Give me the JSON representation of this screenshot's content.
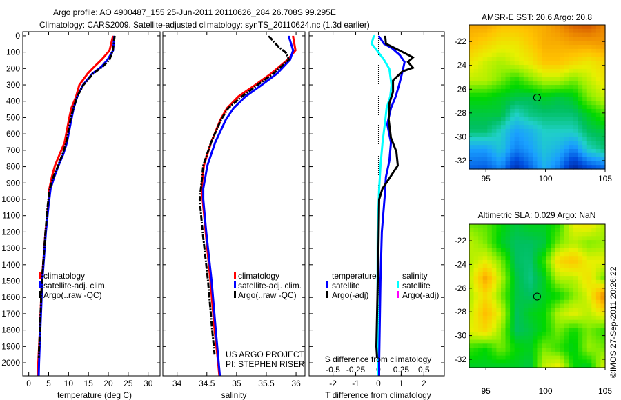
{
  "title": {
    "line1": "Argo profile: AO 4900487_155 25-Jun-2011 20110626_284 26.708S 99.295E",
    "line2": "Climatology: CARS2009. Satellite-adjusted climatology: synTS_20110624.nc (1.3d earlier)"
  },
  "credits": {
    "line1": "US ARGO PROJECT",
    "line2": "PI: STEPHEN RISER"
  },
  "stamp": "©IMOS 27-Sep-2011 20:26:22",
  "colors": {
    "climatology": "#ff0000",
    "satellite": "#0000ff",
    "argo": "#000000",
    "sal_satellite": "#00ffff",
    "sal_argo": "#ff00ff"
  },
  "chart_data": [
    {
      "type": "line",
      "name": "temperature-profile",
      "xlabel": "temperature (deg C)",
      "ylabel": "",
      "xlim": [
        -1.5,
        33
      ],
      "ylim": [
        2080,
        -25
      ],
      "xticks": [
        0,
        5,
        10,
        15,
        20,
        25,
        30
      ],
      "yticks": [
        0,
        100,
        200,
        300,
        400,
        500,
        600,
        700,
        800,
        900,
        1000,
        1100,
        1200,
        1300,
        1400,
        1500,
        1600,
        1700,
        1800,
        1900,
        2000
      ],
      "legend": [
        "climatology",
        "satellite-adj. clim.",
        "Argo(..raw -QC)"
      ],
      "series": [
        {
          "name": "climatology",
          "color": "#ff0000",
          "depth": [
            0,
            70,
            90,
            146,
            188,
            231,
            301,
            371,
            442,
            512,
            653,
            723,
            793,
            864,
            934,
            1032,
            1200,
            1500,
            1800,
            2000,
            2080
          ],
          "values": [
            21.2,
            20.5,
            20.3,
            18.3,
            16.5,
            14.8,
            12.7,
            11.9,
            10.7,
            10.1,
            9.0,
            7.8,
            6.6,
            5.8,
            5.2,
            4.9,
            4.2,
            3.3,
            2.8,
            2.4,
            2.3
          ]
        },
        {
          "name": "satellite-adj. clim.",
          "color": "#0000ff",
          "depth": [
            0,
            90,
            146,
            188,
            231,
            301,
            371,
            442,
            512,
            653,
            723,
            793,
            864,
            934,
            1032,
            1200,
            1500,
            1800,
            2000,
            2080
          ],
          "values": [
            21.5,
            21.2,
            19.8,
            18.3,
            16.0,
            13.6,
            12.2,
            11.3,
            10.7,
            9.6,
            8.7,
            7.5,
            6.4,
            5.5,
            5.0,
            4.3,
            3.4,
            2.9,
            2.6,
            2.5
          ]
        },
        {
          "name": "Argo(..raw -QC)",
          "color": "#000000",
          "depth": [
            0,
            90,
            146,
            188,
            231,
            301,
            371,
            442,
            512,
            653,
            723,
            793,
            864,
            934,
            1032,
            1200,
            1500,
            1800,
            1970
          ],
          "values": [
            21.6,
            21.1,
            20.3,
            18.6,
            16.2,
            13.7,
            12.2,
            11.2,
            10.5,
            9.4,
            8.5,
            7.4,
            6.2,
            5.3,
            4.8,
            4.2,
            3.3,
            2.8,
            2.5
          ]
        }
      ]
    },
    {
      "type": "line",
      "name": "salinity-profile",
      "xlabel": "salinity",
      "xlim": [
        33.76,
        36.15
      ],
      "ylim": [
        2080,
        -25
      ],
      "xticks": [
        34,
        34.5,
        35,
        35.5,
        36
      ],
      "xticklabels": [
        "34",
        "34.5",
        "35",
        "35.5",
        "36"
      ],
      "legend": [
        "climatology",
        "satellite-adj. clim.",
        "Argo(..raw -QC)"
      ],
      "series": [
        {
          "name": "climatology",
          "color": "#ff0000",
          "depth": [
            0,
            5,
            89,
            146,
            231,
            301,
            371,
            442,
            512,
            653,
            793,
            864,
            900,
            1000,
            1200,
            1500,
            1800,
            2000,
            2080
          ],
          "values": [
            35.95,
            35.95,
            35.99,
            35.86,
            35.58,
            35.31,
            35.03,
            34.84,
            34.73,
            34.57,
            34.45,
            34.43,
            34.42,
            34.43,
            34.48,
            34.56,
            34.63,
            34.69,
            34.71
          ]
        },
        {
          "name": "satellite-adj. clim.",
          "color": "#0000ff",
          "depth": [
            0,
            5,
            89,
            146,
            231,
            301,
            371,
            442,
            512,
            653,
            793,
            934,
            1000,
            1200,
            1500,
            1800,
            2000,
            2080
          ],
          "values": [
            35.88,
            35.88,
            35.95,
            35.9,
            35.68,
            35.42,
            35.15,
            34.95,
            34.82,
            34.64,
            34.51,
            34.44,
            34.44,
            34.49,
            34.58,
            34.65,
            34.7,
            34.72
          ]
        },
        {
          "name": "Argo(..raw -QC)",
          "color": "#000000",
          "depth": [
            0,
            5,
            62,
            104,
            146,
            231,
            301,
            371,
            442,
            512,
            653,
            793,
            934,
            1000,
            1200,
            1500,
            1800,
            1950
          ],
          "values": [
            35.55,
            35.55,
            35.69,
            35.83,
            35.88,
            35.62,
            35.35,
            35.09,
            34.86,
            34.74,
            34.57,
            34.44,
            34.4,
            34.38,
            34.43,
            34.52,
            34.59,
            34.63
          ]
        }
      ]
    },
    {
      "type": "line",
      "name": "difference-profile",
      "xlabel": "T difference from climatology",
      "s_axis_label": "S difference from climatology",
      "xlim": [
        -3.05,
        2.9
      ],
      "ylim": [
        2080,
        -25
      ],
      "xticks": [
        -2,
        -1,
        0,
        1,
        2
      ],
      "s_xticks": [
        -0.5,
        -0.25,
        0,
        0.25,
        0.5
      ],
      "s_xticklabels": [
        "-0.5",
        "-0.25",
        "0",
        "0.25",
        "0.5"
      ],
      "legend": {
        "temperature_title": "temperature",
        "salinity_title": "salinity",
        "t_sat": "satellite",
        "t_argo": "Argo(-adj)",
        "s_sat": "satellite",
        "s_argo": "Argo(-adj)"
      },
      "series": [
        {
          "name": "salinity satellite",
          "axis": "S",
          "color": "#00ffff",
          "depth": [
            0,
            5,
            48,
            90,
            146,
            203,
            301,
            371,
            442,
            512,
            653,
            793,
            934,
            1200,
            1500,
            1800,
            2080
          ],
          "values": [
            -0.04,
            -0.053,
            -0.076,
            -0.015,
            0.06,
            0.12,
            0.144,
            0.13,
            0.09,
            0.076,
            0.045,
            0.023,
            0.008,
            -0.008,
            -0.01,
            -0.008,
            -0.004
          ]
        },
        {
          "name": "temperature satellite",
          "axis": "T",
          "color": "#0000ff",
          "depth": [
            0,
            5,
            48,
            76,
            118,
            160,
            217,
            301,
            371,
            442,
            540,
            653,
            765,
            864,
            990,
            1200,
            1500,
            2000,
            2080
          ],
          "values": [
            0.03,
            0.03,
            0.24,
            0.6,
            0.94,
            1.15,
            1.06,
            0.91,
            0.76,
            0.55,
            0.39,
            0.55,
            0.48,
            0.33,
            0.27,
            0.15,
            0.09,
            0.03,
            0.03
          ]
        },
        {
          "name": "temperature Argo(-adj)",
          "axis": "T",
          "color": "#000000",
          "depth": [
            0,
            5,
            48,
            90,
            132,
            160,
            195,
            217,
            273,
            343,
            413,
            512,
            624,
            709,
            793,
            878,
            934,
            1000,
            1300,
            1500,
            1900,
            1970
          ],
          "values": [
            0.3,
            0.3,
            0.33,
            0.94,
            1.52,
            1.3,
            1.52,
            1.06,
            0.64,
            0.64,
            0.48,
            0.45,
            0.55,
            0.79,
            0.85,
            0.45,
            0.18,
            0.03,
            0.0,
            -0.03,
            -0.09,
            -0.06
          ]
        }
      ]
    },
    {
      "type": "heatmap",
      "name": "sst-map",
      "title": "AMSR-E SST: 20.6 Argo: 20.8",
      "xlim": [
        93.6,
        105
      ],
      "ylim": [
        -32.7,
        -20.6
      ],
      "xticks": [
        95,
        100,
        105
      ],
      "yticks": [
        -22,
        -24,
        -26,
        -28,
        -30,
        -32
      ],
      "marker": {
        "lon": 99.295,
        "lat": -26.708
      },
      "grid_note": "normalized color index 0-1, rows north to south, cols west to east",
      "values": [
        [
          0.75,
          0.75,
          0.7,
          0.7,
          0.72,
          0.75,
          0.8,
          0.86,
          0.88,
          0.82
        ],
        [
          0.7,
          0.66,
          0.62,
          0.62,
          0.68,
          0.74,
          0.74,
          0.76,
          0.76,
          0.78
        ],
        [
          0.62,
          0.57,
          0.54,
          0.58,
          0.62,
          0.7,
          0.7,
          0.66,
          0.62,
          0.66
        ],
        [
          0.56,
          0.55,
          0.5,
          0.44,
          0.5,
          0.55,
          0.55,
          0.5,
          0.56,
          0.62
        ],
        [
          0.42,
          0.42,
          0.4,
          0.38,
          0.37,
          0.4,
          0.38,
          0.4,
          0.5,
          0.56
        ],
        [
          0.38,
          0.38,
          0.38,
          0.3,
          0.34,
          0.35,
          0.35,
          0.35,
          0.4,
          0.45
        ],
        [
          0.35,
          0.35,
          0.3,
          0.22,
          0.25,
          0.3,
          0.3,
          0.3,
          0.36,
          0.38
        ],
        [
          0.22,
          0.22,
          0.28,
          0.18,
          0.22,
          0.28,
          0.25,
          0.18,
          0.3,
          0.34
        ],
        [
          0.15,
          0.14,
          0.2,
          0.06,
          0.15,
          0.25,
          0.18,
          0.04,
          0.12,
          0.16
        ]
      ]
    },
    {
      "type": "heatmap",
      "name": "sla-map",
      "title": "Altimetric SLA: 0.029 Argo: NaN",
      "xlim": [
        93.6,
        105
      ],
      "ylim": [
        -32.7,
        -20.6
      ],
      "xticks": [
        95,
        100,
        105
      ],
      "yticks": [
        -22,
        -24,
        -26,
        -28,
        -30,
        -32
      ],
      "marker": {
        "lon": 99.295,
        "lat": -26.708
      },
      "values": [
        [
          0.5,
          0.48,
          0.42,
          0.38,
          0.4,
          0.4,
          0.45,
          0.6,
          0.62,
          0.55
        ],
        [
          0.55,
          0.5,
          0.4,
          0.36,
          0.36,
          0.38,
          0.5,
          0.55,
          0.5,
          0.52
        ],
        [
          0.55,
          0.6,
          0.5,
          0.36,
          0.35,
          0.45,
          0.66,
          0.7,
          0.6,
          0.6
        ],
        [
          0.58,
          0.76,
          0.55,
          0.38,
          0.34,
          0.4,
          0.55,
          0.55,
          0.64,
          0.5
        ],
        [
          0.55,
          0.65,
          0.5,
          0.38,
          0.36,
          0.4,
          0.42,
          0.5,
          0.58,
          0.8
        ],
        [
          0.58,
          0.72,
          0.58,
          0.36,
          0.4,
          0.42,
          0.55,
          0.6,
          0.55,
          0.62
        ],
        [
          0.6,
          0.65,
          0.52,
          0.36,
          0.38,
          0.42,
          0.5,
          0.42,
          0.5,
          0.45
        ],
        [
          0.45,
          0.42,
          0.5,
          0.42,
          0.4,
          0.5,
          0.45,
          0.4,
          0.52,
          0.5
        ],
        [
          0.4,
          0.4,
          0.4,
          0.4,
          0.38,
          0.56,
          0.6,
          0.42,
          0.4,
          0.56
        ]
      ]
    }
  ]
}
